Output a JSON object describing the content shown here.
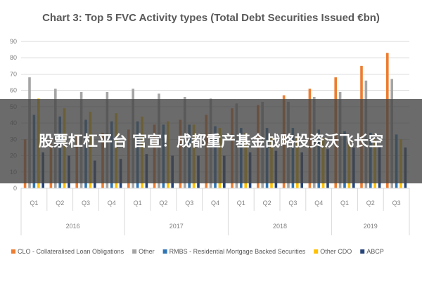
{
  "chart_data": {
    "type": "bar",
    "title": "Chart 3: Top 5 FVC Activity types (Total Debt Securities Issued €bn)",
    "xlabel": "",
    "ylabel": "",
    "ylim": [
      0,
      90
    ],
    "yticks": [
      0,
      10,
      20,
      30,
      40,
      50,
      60,
      70,
      80,
      90
    ],
    "grid": true,
    "legend_position": "bottom",
    "categories": [
      "Q1",
      "Q2",
      "Q3",
      "Q4",
      "Q1",
      "Q2",
      "Q3",
      "Q4",
      "Q1",
      "Q2",
      "Q3",
      "Q4",
      "Q1",
      "Q2",
      "Q3"
    ],
    "years": [
      {
        "label": "2016",
        "quarters": 4
      },
      {
        "label": "2017",
        "quarters": 4
      },
      {
        "label": "2018",
        "quarters": 4
      },
      {
        "label": "2019",
        "quarters": 3
      }
    ],
    "series": [
      {
        "name": "CLO - Collateralised Loan Obligations",
        "color": "#ed7d31",
        "values": [
          30,
          31,
          33,
          34,
          36,
          39,
          42,
          45,
          49,
          51,
          57,
          61,
          68,
          75,
          83
        ]
      },
      {
        "name": "Other",
        "color": "#a5a5a5",
        "values": [
          68,
          61,
          59,
          59,
          61,
          58,
          56,
          55,
          52,
          53,
          53,
          56,
          59,
          66,
          67
        ]
      },
      {
        "name": "RMBS - Residential Mortgage Backed Securities",
        "color": "#2e75b6",
        "values": [
          45,
          44,
          42,
          41,
          41,
          39,
          39,
          38,
          37,
          37,
          37,
          36,
          35,
          34,
          33
        ]
      },
      {
        "name": "Other CDO",
        "color": "#ffc000",
        "values": [
          55,
          49,
          47,
          46,
          44,
          41,
          39,
          37,
          34,
          32,
          32,
          31,
          31,
          30,
          30
        ]
      },
      {
        "name": "ABCP",
        "color": "#264478",
        "values": [
          22,
          20,
          17,
          18,
          21,
          20,
          20,
          20,
          22,
          23,
          22,
          24,
          25,
          26,
          25
        ]
      }
    ]
  },
  "overlay": {
    "text": "股票杠杠平台 官宣！成都重产基金战略投资沃飞长空"
  }
}
